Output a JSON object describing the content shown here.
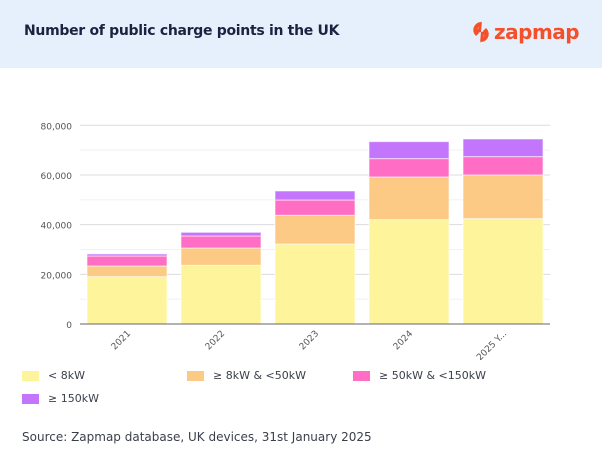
{
  "header": {
    "title": "Number of public charge points in the UK",
    "logo_text": "zapmap",
    "logo_icon": "lightning-bolt-icon",
    "brand_color": "#f4502a"
  },
  "chart_data": {
    "type": "bar",
    "stacked": true,
    "title": "Number of public charge points in the UK",
    "categories": [
      "2021",
      "2022",
      "2023",
      "2024",
      "2025 Y..."
    ],
    "series": [
      {
        "name": "< 8kW",
        "color": "#fef49c",
        "values": [
          19060,
          23620,
          32210,
          42010,
          42420
        ]
      },
      {
        "name": "≥ 8kW & <50kW",
        "color": "#fdca86",
        "values": [
          4300,
          6980,
          11550,
          17180,
          17580
        ]
      },
      {
        "name": "≥ 50kW & <150kW",
        "color": "#ff6ec4",
        "values": [
          4020,
          4840,
          6170,
          7390,
          7380
        ]
      },
      {
        "name": "≥ 150kW",
        "color": "#c376fb",
        "values": [
          810,
          1470,
          3630,
          6840,
          7120
        ]
      }
    ],
    "yticks": [
      "0",
      "20,000",
      "40,000",
      "60,000",
      "80,000"
    ],
    "ylim": [
      0,
      80000
    ],
    "grid": true,
    "legend": "bottom",
    "xlabel": "",
    "ylabel": ""
  },
  "source": "Source: Zapmap database, UK devices, 31st January 2025"
}
